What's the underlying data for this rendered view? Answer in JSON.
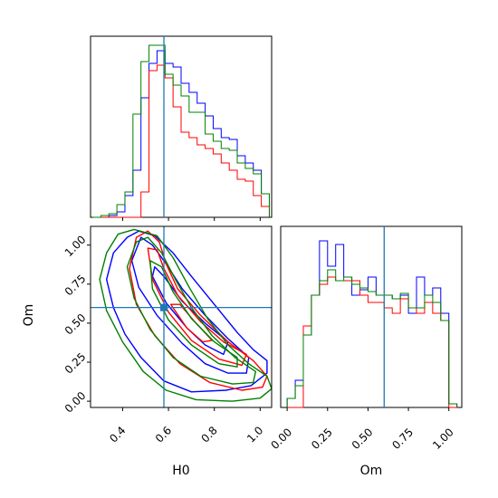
{
  "chart_data": [
    {
      "type": "histogram",
      "panel": "H0 marginal",
      "xlim": [
        0.26,
        1.05
      ],
      "bins": [
        0.27,
        0.305,
        0.34,
        0.375,
        0.41,
        0.445,
        0.48,
        0.515,
        0.55,
        0.585,
        0.62,
        0.655,
        0.69,
        0.725,
        0.76,
        0.795,
        0.83,
        0.865,
        0.9,
        0.935,
        0.97,
        1.005,
        1.04
      ],
      "series": [
        {
          "color": "#0000ff",
          "values": [
            0.0,
            0.0,
            0.01,
            0.03,
            0.12,
            0.26,
            0.66,
            0.85,
            0.92,
            0.85,
            0.83,
            0.74,
            0.69,
            0.63,
            0.56,
            0.49,
            0.44,
            0.43,
            0.34,
            0.3,
            0.26,
            0.13
          ]
        },
        {
          "color": "#ff0000",
          "values": [
            0.0,
            0.0,
            0.0,
            0.0,
            0.0,
            0.0,
            0.14,
            0.81,
            0.84,
            0.77,
            0.61,
            0.47,
            0.44,
            0.4,
            0.38,
            0.35,
            0.3,
            0.26,
            0.21,
            0.2,
            0.12,
            0.06
          ]
        },
        {
          "color": "#008000",
          "values": [
            0.0,
            0.01,
            0.02,
            0.07,
            0.14,
            0.57,
            0.86,
            0.95,
            0.95,
            0.79,
            0.73,
            0.67,
            0.58,
            0.58,
            0.46,
            0.42,
            0.38,
            0.37,
            0.3,
            0.27,
            0.24,
            0.13
          ]
        }
      ],
      "truth": 0.58
    },
    {
      "type": "contour",
      "panel": "H0 vs Om",
      "xlabel": "H0",
      "ylabel": "Om",
      "xlim": [
        0.26,
        1.05
      ],
      "ylim": [
        -0.04,
        1.12
      ],
      "x_ticks": [
        "0.4",
        "0.6",
        "0.8",
        "1.0"
      ],
      "x_tick_values": [
        0.4,
        0.6,
        0.8,
        1.0
      ],
      "y_ticks": [
        "0.00",
        "0.25",
        "0.50",
        "0.75",
        "1.00"
      ],
      "y_tick_values": [
        0.0,
        0.25,
        0.5,
        0.75,
        1.0
      ],
      "truth": {
        "H0": 0.58,
        "Om": 0.6
      },
      "series": [
        {
          "color": "#0000ff",
          "contours": [
            [
              [
                0.42,
                1.05
              ],
              [
                0.36,
                0.95
              ],
              [
                0.33,
                0.78
              ],
              [
                0.36,
                0.6
              ],
              [
                0.41,
                0.43
              ],
              [
                0.48,
                0.28
              ],
              [
                0.58,
                0.13
              ],
              [
                0.7,
                0.06
              ],
              [
                0.85,
                0.07
              ],
              [
                0.96,
                0.1
              ],
              [
                1.03,
                0.18
              ],
              [
                1.03,
                0.26
              ],
              [
                0.97,
                0.33
              ],
              [
                0.9,
                0.44
              ],
              [
                0.8,
                0.62
              ],
              [
                0.7,
                0.8
              ],
              [
                0.62,
                0.95
              ],
              [
                0.54,
                1.06
              ],
              [
                0.47,
                1.09
              ]
            ],
            [
              [
                0.48,
                1.05
              ],
              [
                0.44,
                0.9
              ],
              [
                0.47,
                0.73
              ],
              [
                0.55,
                0.55
              ],
              [
                0.66,
                0.37
              ],
              [
                0.76,
                0.24
              ],
              [
                0.86,
                0.18
              ],
              [
                0.94,
                0.18
              ],
              [
                0.95,
                0.28
              ],
              [
                0.86,
                0.4
              ],
              [
                0.76,
                0.55
              ],
              [
                0.66,
                0.72
              ],
              [
                0.59,
                0.88
              ],
              [
                0.53,
                1.0
              ]
            ],
            [
              [
                0.53,
                0.8
              ],
              [
                0.59,
                0.63
              ],
              [
                0.68,
                0.47
              ],
              [
                0.76,
                0.36
              ],
              [
                0.84,
                0.3
              ],
              [
                0.86,
                0.38
              ],
              [
                0.76,
                0.5
              ],
              [
                0.66,
                0.64
              ],
              [
                0.58,
                0.8
              ],
              [
                0.54,
                0.86
              ]
            ]
          ]
        },
        {
          "color": "#ff0000",
          "contours": [
            [
              [
                0.46,
                1.05
              ],
              [
                0.43,
                0.85
              ],
              [
                0.46,
                0.62
              ],
              [
                0.54,
                0.42
              ],
              [
                0.65,
                0.24
              ],
              [
                0.78,
                0.12
              ],
              [
                0.92,
                0.07
              ],
              [
                1.01,
                0.09
              ],
              [
                1.03,
                0.16
              ],
              [
                0.97,
                0.26
              ],
              [
                0.86,
                0.38
              ],
              [
                0.74,
                0.55
              ],
              [
                0.64,
                0.72
              ],
              [
                0.59,
                0.88
              ],
              [
                0.56,
                1.02
              ],
              [
                0.51,
                1.09
              ]
            ],
            [
              [
                0.51,
                0.98
              ],
              [
                0.53,
                0.78
              ],
              [
                0.6,
                0.57
              ],
              [
                0.7,
                0.39
              ],
              [
                0.82,
                0.27
              ],
              [
                0.92,
                0.23
              ],
              [
                0.94,
                0.3
              ],
              [
                0.84,
                0.38
              ],
              [
                0.74,
                0.51
              ],
              [
                0.64,
                0.68
              ],
              [
                0.58,
                0.85
              ],
              [
                0.55,
                0.97
              ]
            ],
            [
              [
                0.61,
                0.62
              ],
              [
                0.68,
                0.47
              ],
              [
                0.75,
                0.38
              ],
              [
                0.79,
                0.39
              ],
              [
                0.72,
                0.5
              ],
              [
                0.65,
                0.62
              ]
            ]
          ]
        },
        {
          "color": "#008000",
          "contours": [
            [
              [
                0.38,
                1.07
              ],
              [
                0.33,
                0.95
              ],
              [
                0.3,
                0.78
              ],
              [
                0.33,
                0.58
              ],
              [
                0.4,
                0.38
              ],
              [
                0.49,
                0.19
              ],
              [
                0.59,
                0.07
              ],
              [
                0.72,
                0.01
              ],
              [
                0.88,
                0.0
              ],
              [
                1.0,
                0.02
              ],
              [
                1.05,
                0.08
              ],
              [
                1.03,
                0.16
              ],
              [
                0.95,
                0.24
              ],
              [
                0.86,
                0.36
              ],
              [
                0.77,
                0.53
              ],
              [
                0.69,
                0.73
              ],
              [
                0.62,
                0.92
              ],
              [
                0.55,
                1.06
              ],
              [
                0.45,
                1.1
              ]
            ],
            [
              [
                0.46,
                1.02
              ],
              [
                0.42,
                0.86
              ],
              [
                0.45,
                0.66
              ],
              [
                0.52,
                0.46
              ],
              [
                0.62,
                0.28
              ],
              [
                0.74,
                0.16
              ],
              [
                0.88,
                0.11
              ],
              [
                0.97,
                0.12
              ],
              [
                0.98,
                0.19
              ],
              [
                0.89,
                0.28
              ],
              [
                0.79,
                0.42
              ],
              [
                0.7,
                0.6
              ],
              [
                0.63,
                0.78
              ],
              [
                0.57,
                0.95
              ],
              [
                0.51,
                1.05
              ]
            ],
            [
              [
                0.52,
                0.9
              ],
              [
                0.53,
                0.72
              ],
              [
                0.6,
                0.52
              ],
              [
                0.7,
                0.36
              ],
              [
                0.82,
                0.24
              ],
              [
                0.9,
                0.22
              ],
              [
                0.9,
                0.28
              ],
              [
                0.8,
                0.38
              ],
              [
                0.7,
                0.53
              ],
              [
                0.62,
                0.7
              ],
              [
                0.57,
                0.86
              ]
            ]
          ]
        }
      ]
    },
    {
      "type": "histogram",
      "panel": "Om marginal",
      "xlabel": "Om",
      "xlim": [
        -0.04,
        1.08
      ],
      "x_ticks": [
        "0.00",
        "0.25",
        "0.50",
        "0.75",
        "1.00"
      ],
      "x_tick_values": [
        0.0,
        0.25,
        0.5,
        0.75,
        1.0
      ],
      "bins": [
        0.0,
        0.05,
        0.1,
        0.15,
        0.2,
        0.25,
        0.3,
        0.35,
        0.4,
        0.45,
        0.5,
        0.55,
        0.6,
        0.65,
        0.7,
        0.75,
        0.8,
        0.85,
        0.9,
        0.95,
        1.0,
        1.05
      ],
      "series": [
        {
          "color": "#0000ff",
          "values": [
            0.05,
            0.15,
            0.4,
            0.62,
            0.92,
            0.78,
            0.9,
            0.72,
            0.62,
            0.65,
            0.72,
            0.62,
            0.62,
            0.6,
            0.62,
            0.52,
            0.72,
            0.62,
            0.66,
            0.52,
            0.02
          ]
        },
        {
          "color": "#ff0000",
          "values": [
            0.0,
            0.0,
            0.45,
            0.62,
            0.68,
            0.72,
            0.7,
            0.7,
            0.7,
            0.62,
            0.58,
            0.58,
            0.55,
            0.52,
            0.6,
            0.55,
            0.52,
            0.58,
            0.52,
            0.48,
            0.0
          ]
        },
        {
          "color": "#008000",
          "values": [
            0.05,
            0.12,
            0.4,
            0.62,
            0.7,
            0.76,
            0.7,
            0.72,
            0.68,
            0.66,
            0.64,
            0.62,
            0.62,
            0.6,
            0.63,
            0.55,
            0.55,
            0.62,
            0.58,
            0.48,
            0.02
          ]
        }
      ],
      "truth": 0.6
    }
  ],
  "colors": {
    "truth_line": "#1f77b4",
    "frame": "#000000"
  }
}
